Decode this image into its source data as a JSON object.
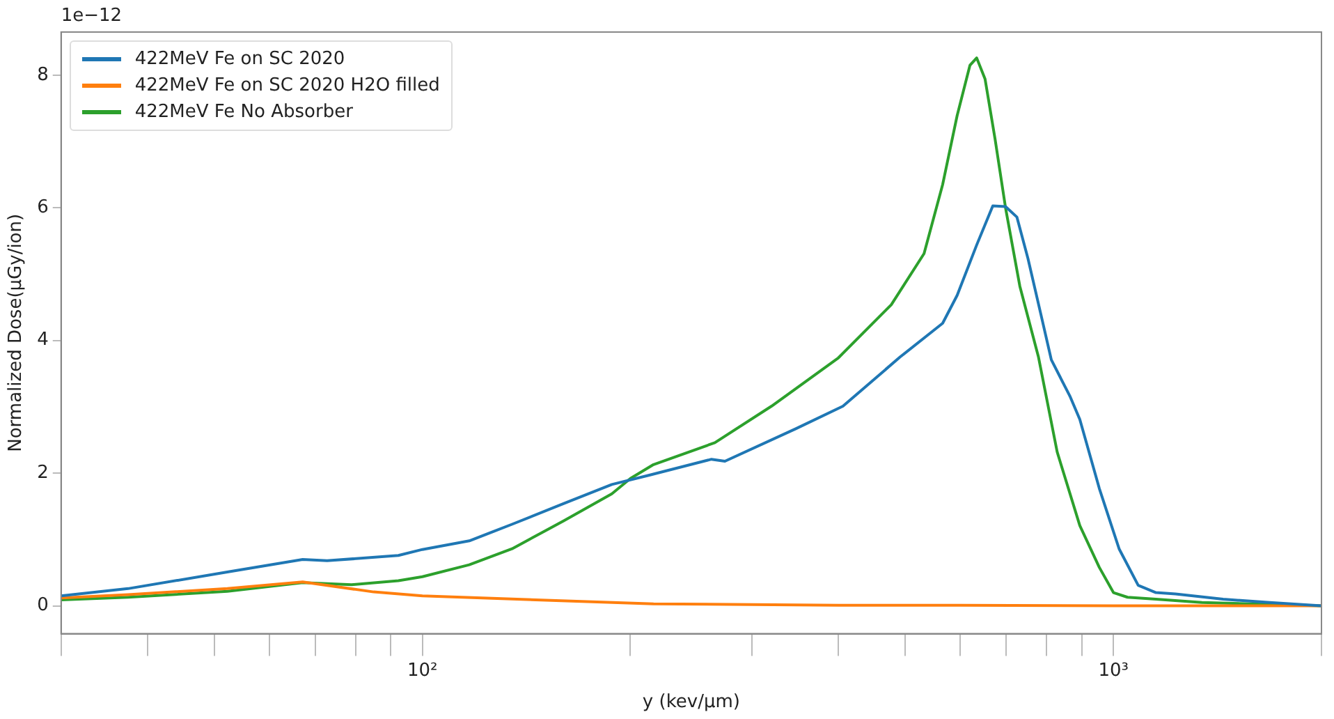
{
  "chart_data": {
    "type": "line",
    "xlabel": "y (kev/µm)",
    "ylabel": "Normalized Dose(µGy/ion)",
    "annotations": [
      "1e−12"
    ],
    "log": "x",
    "grid": false,
    "legend": "top left",
    "marker": "none",
    "line_style": "solid",
    "xlim": [
      30,
      2000
    ],
    "ylim": [
      -0.42,
      8.65
    ],
    "xticks": [
      {
        "value": 30,
        "label": null
      },
      {
        "value": 40,
        "label": null
      },
      {
        "value": 50,
        "label": null
      },
      {
        "value": 60,
        "label": null
      },
      {
        "value": 70,
        "label": null
      },
      {
        "value": 80,
        "label": null
      },
      {
        "value": 90,
        "label": null
      },
      {
        "value": 100,
        "label": "10²"
      },
      {
        "value": 200,
        "label": null
      },
      {
        "value": 300,
        "label": null
      },
      {
        "value": 400,
        "label": null
      },
      {
        "value": 500,
        "label": null
      },
      {
        "value": 600,
        "label": null
      },
      {
        "value": 700,
        "label": null
      },
      {
        "value": 800,
        "label": null
      },
      {
        "value": 900,
        "label": null
      },
      {
        "value": 1000,
        "label": "10³"
      },
      {
        "value": 2000,
        "label": null
      }
    ],
    "yticks": [
      0,
      2,
      4,
      6,
      8
    ],
    "series": [
      {
        "name": "422MeV Fe on SC 2020",
        "color": "#1f77b4",
        "x": [
          30,
          37.5,
          52.2,
          67.1,
          72.8,
          92.3,
          100,
          116.9,
          134.8,
          160,
          188,
          213,
          262,
          274,
          347,
          406,
          491,
          566,
          594,
          634,
          669,
          698,
          725,
          752,
          785,
          813,
          866,
          894,
          954,
          1019,
          1086,
          1152,
          1230,
          1441,
          1683,
          2000
        ],
        "values": [
          0.15,
          0.26,
          0.51,
          0.7,
          0.68,
          0.76,
          0.85,
          0.98,
          1.23,
          1.54,
          1.83,
          1.97,
          2.21,
          2.18,
          2.67,
          3.01,
          3.75,
          4.26,
          4.68,
          5.44,
          6.03,
          6.02,
          5.86,
          5.24,
          4.4,
          3.71,
          3.15,
          2.81,
          1.77,
          0.86,
          0.31,
          0.2,
          0.18,
          0.1,
          0.05,
          0
        ]
      },
      {
        "name": "422MeV Fe on SC 2020 H2O filled",
        "color": "#ff7f0e",
        "x": [
          30,
          37.5,
          52.2,
          67.1,
          85,
          100,
          137,
          216,
          400,
          600,
          1000,
          2000
        ],
        "values": [
          0.12,
          0.17,
          0.26,
          0.36,
          0.21,
          0.15,
          0.1,
          0.03,
          0.01,
          0.01,
          0,
          0
        ]
      },
      {
        "name": "422MeV Fe No Absorber",
        "color": "#2ca02c",
        "x": [
          30,
          37.5,
          52.2,
          67.1,
          79,
          92.3,
          100,
          116.9,
          134.8,
          160,
          188,
          200,
          216,
          265,
          320,
          400,
          477,
          532,
          566,
          594,
          620,
          634,
          652,
          674,
          698,
          732,
          779,
          829,
          894,
          954,
          1000,
          1048,
          1152,
          1343,
          2000
        ],
        "values": [
          0.09,
          0.13,
          0.22,
          0.35,
          0.32,
          0.38,
          0.44,
          0.62,
          0.86,
          1.28,
          1.69,
          1.92,
          2.13,
          2.46,
          3.01,
          3.74,
          4.54,
          5.31,
          6.35,
          7.39,
          8.15,
          8.26,
          7.94,
          7.04,
          6.0,
          4.82,
          3.75,
          2.32,
          1.21,
          0.58,
          0.2,
          0.13,
          0.1,
          0.05,
          0
        ]
      }
    ]
  }
}
